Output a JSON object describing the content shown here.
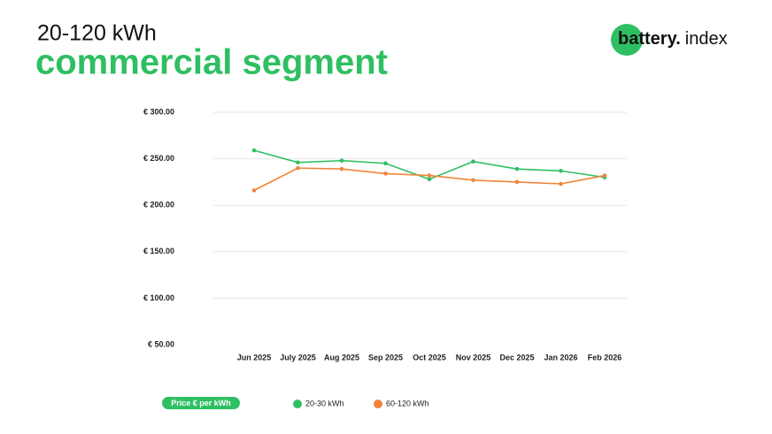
{
  "logo": {
    "bold": "battery.",
    "text": "index"
  },
  "chart_data": {
    "type": "line",
    "subtitle": "20-120 kWh",
    "title": "commercial segment",
    "categories": [
      "Jun 2025",
      "July 2025",
      "Aug 2025",
      "Sep 2025",
      "Oct 2025",
      "Nov 2025",
      "Dec 2025",
      "Jan 2026",
      "Feb 2026"
    ],
    "series": [
      {
        "name": "20-30 kWh",
        "color": "#2fbf63",
        "values": [
          259,
          246,
          248,
          245,
          228,
          247,
          239,
          237,
          230
        ]
      },
      {
        "name": "60-120 kWh",
        "color": "#f0853a",
        "values": [
          216,
          240,
          239,
          234,
          232,
          227,
          225,
          223,
          232
        ]
      }
    ],
    "ylim": [
      50,
      300
    ],
    "yticks": [
      {
        "value": 50,
        "label": "€ 50.00"
      },
      {
        "value": 100,
        "label": "€ 100.00"
      },
      {
        "value": 150,
        "label": "€ 150.00"
      },
      {
        "value": 200,
        "label": "€ 200.00"
      },
      {
        "value": 250,
        "label": "€ 250.00"
      },
      {
        "value": 300,
        "label": "€ 300.00"
      }
    ],
    "grid": true,
    "legend_title": "Price € per kWh"
  }
}
